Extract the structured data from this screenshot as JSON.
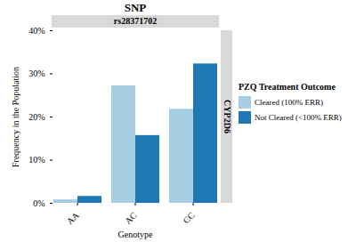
{
  "chart_data": {
    "type": "bar",
    "title": "SNP",
    "annotations": [
      "rs28371702",
      "CYP2D6"
    ],
    "x_label": "Genotype",
    "y_label": "Frequency in the Population",
    "categories": [
      "AA",
      "AC",
      "CC"
    ],
    "series": [
      {
        "name": "Cleared (100% ERR)",
        "color": "#a6cee3",
        "values": [
          0.8,
          27.2,
          21.8
        ]
      },
      {
        "name": "Not Cleared (<100% ERR)",
        "color": "#1f78b4",
        "values": [
          1.6,
          15.7,
          32.3
        ]
      }
    ],
    "legend_title": "PZQ Treatment Outcome",
    "legend": "right",
    "ylim": [
      0,
      40
    ],
    "yticks": [
      {
        "value": 0,
        "label": "0%"
      },
      {
        "value": 10,
        "label": "10%"
      },
      {
        "value": 20,
        "label": "20%"
      },
      {
        "value": 30,
        "label": "30%"
      },
      {
        "value": 40,
        "label": "40%"
      }
    ],
    "grid": false
  }
}
